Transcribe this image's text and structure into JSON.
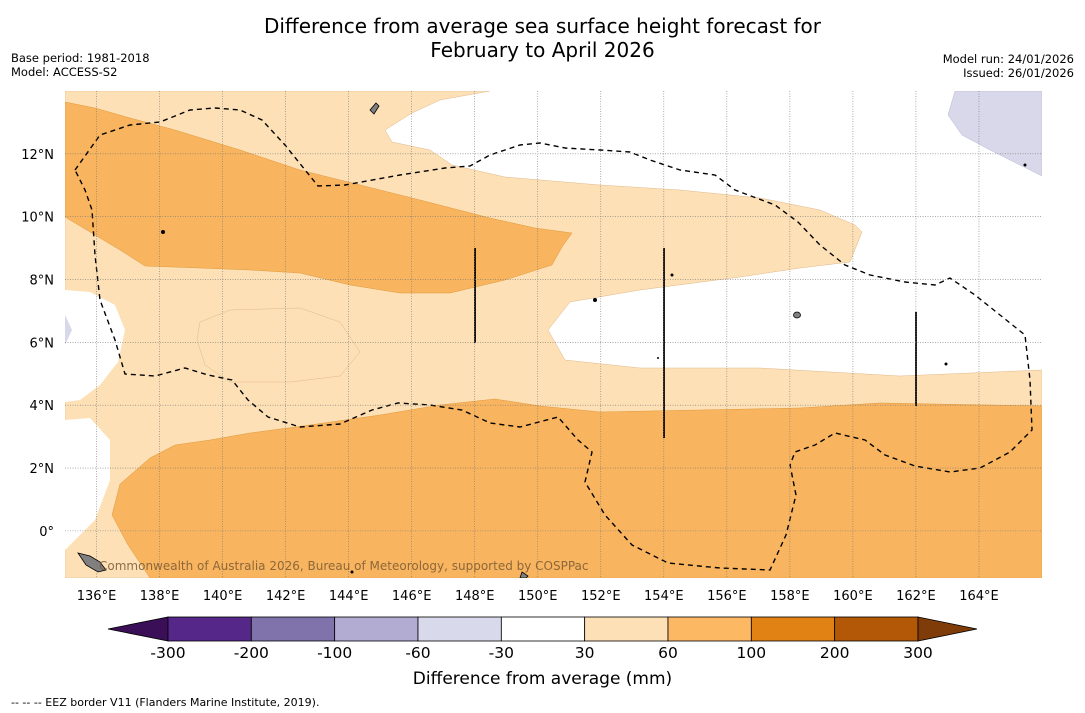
{
  "header": {
    "title_line1": "Difference from average sea surface height forecast for",
    "title_line2": "February to April 2026",
    "base_period": "Base period: 1981-2018",
    "model": "Model: ACCESS-S2",
    "model_run": "Model run: 24/01/2026",
    "issued": "Issued: 26/01/2026"
  },
  "map": {
    "lon_labels": [
      "136°E",
      "138°E",
      "140°E",
      "142°E",
      "144°E",
      "146°E",
      "148°E",
      "150°E",
      "152°E",
      "154°E",
      "156°E",
      "158°E",
      "160°E",
      "162°E",
      "164°E"
    ],
    "lat_labels": [
      "12°N",
      "10°N",
      "8°N",
      "6°N",
      "4°N",
      "2°N",
      "0°"
    ],
    "credit": "Commonwealth of Australia 2026, Bureau of Meteorology, supported by COSPPac",
    "colors": {
      "band_30_60": "#fde0b5",
      "band_60_100": "#f8b45e",
      "band_neg30_neg60": "#d8d8ea",
      "land": "#808080",
      "grid": "#777777"
    }
  },
  "colorbar": {
    "labels": [
      "-300",
      "-200",
      "-100",
      "-60",
      "-30",
      "30",
      "60",
      "100",
      "200",
      "300"
    ],
    "colors": [
      "#3b0f57",
      "#542788",
      "#8073ac",
      "#b2abd2",
      "#d8daeb",
      "#ffffff",
      "#fee0b6",
      "#fdb863",
      "#e08214",
      "#b35806",
      "#7f3b08"
    ],
    "title": "Difference from average (mm)"
  },
  "footnote": "--  --  -- EEZ border V11 (Flanders Marine Institute, 2019)."
}
